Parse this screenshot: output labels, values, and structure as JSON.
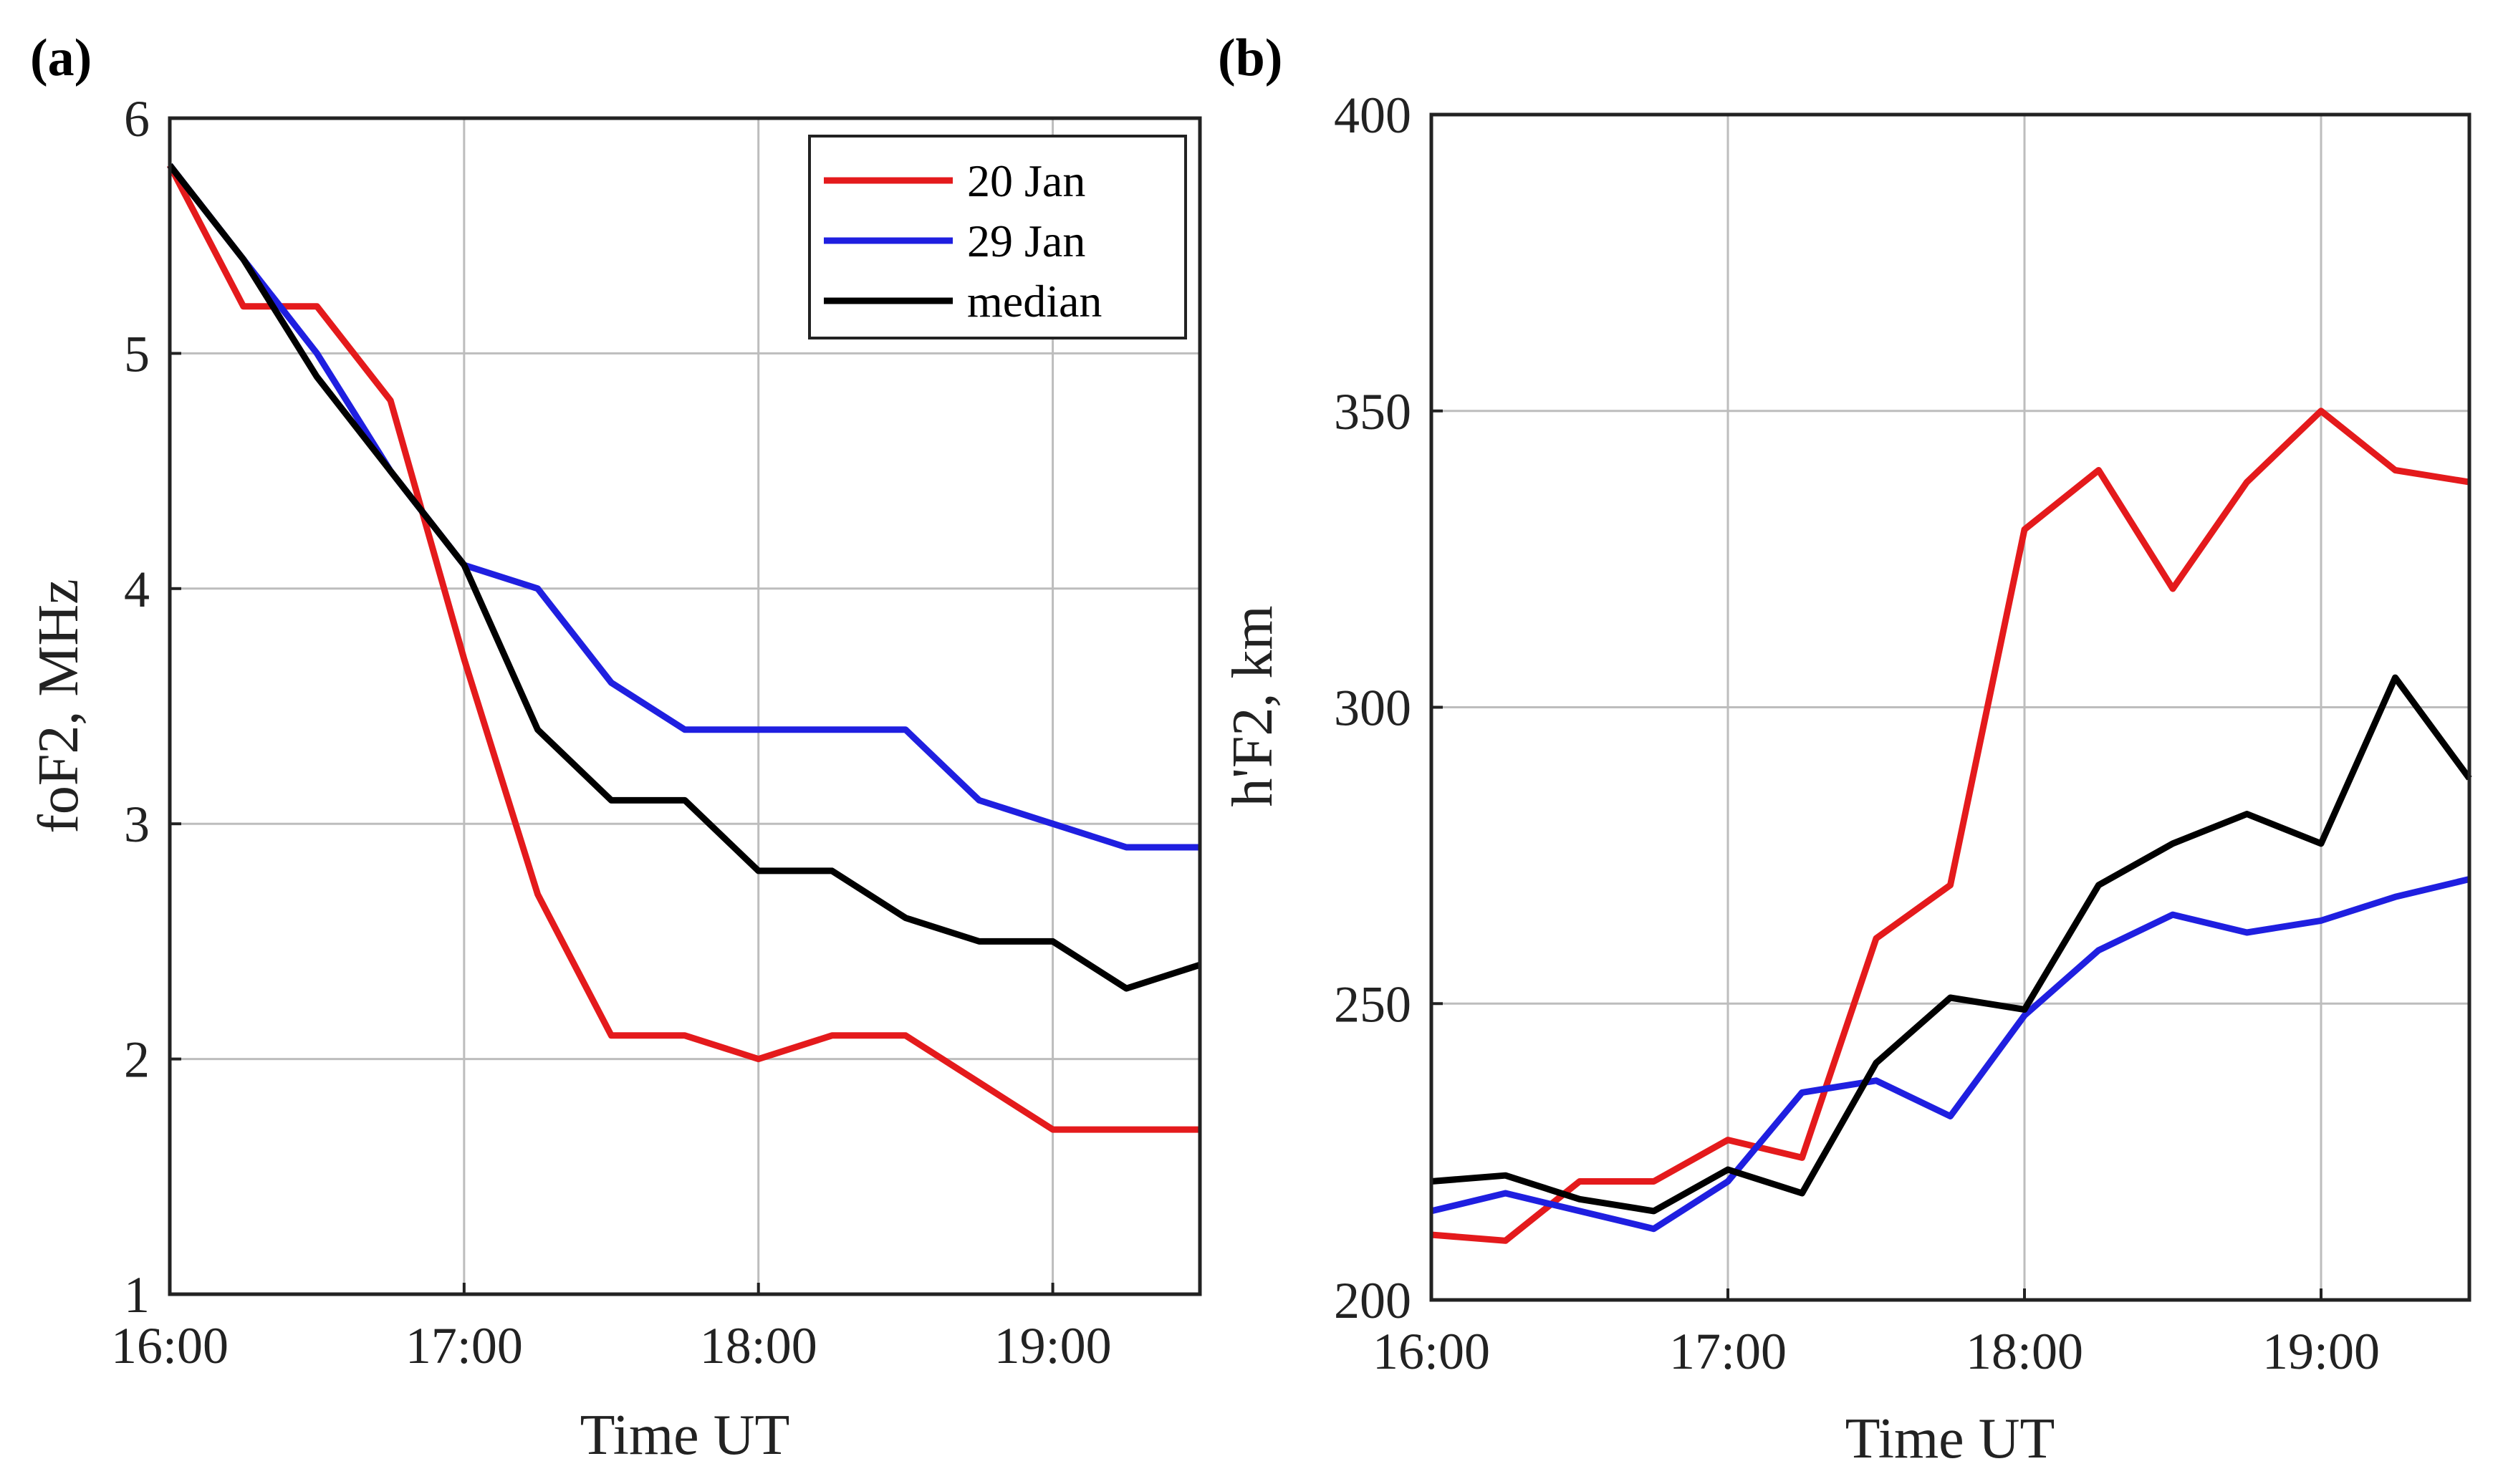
{
  "chart_data": [
    {
      "panel_label": "(a)",
      "type": "line",
      "xlabel": "Time UT",
      "ylabel": "foF2, MHz",
      "xlim": [
        16.0,
        19.5
      ],
      "ylim": [
        1,
        6
      ],
      "xticks": [
        16,
        17,
        18,
        19
      ],
      "xtick_labels": [
        "16:00",
        "17:00",
        "18:00",
        "19:00"
      ],
      "yticks": [
        1,
        2,
        3,
        4,
        5,
        6
      ],
      "ytick_labels": [
        "1",
        "2",
        "3",
        "4",
        "5",
        "6"
      ],
      "grid": true,
      "legend": "top-right",
      "x": [
        16.0,
        16.25,
        16.5,
        16.75,
        17.0,
        17.25,
        17.5,
        17.75,
        18.0,
        18.25,
        18.5,
        18.75,
        19.0,
        19.25,
        19.5
      ],
      "series": [
        {
          "name": "20 Jan",
          "color": "#e41a1c",
          "values": [
            5.8,
            5.2,
            5.2,
            4.8,
            3.7,
            2.7,
            2.1,
            2.1,
            2.0,
            2.1,
            2.1,
            1.9,
            1.7,
            1.7,
            1.7
          ]
        },
        {
          "name": "29 Jan",
          "color": "#1f1fe0",
          "values": [
            5.8,
            5.4,
            5.0,
            4.5,
            4.1,
            4.0,
            3.6,
            3.4,
            3.4,
            3.4,
            3.4,
            3.1,
            3.0,
            2.9,
            2.9
          ]
        },
        {
          "name": "median",
          "color": "#000000",
          "values": [
            5.8,
            5.4,
            4.9,
            4.5,
            4.1,
            3.4,
            3.1,
            3.1,
            2.8,
            2.8,
            2.6,
            2.5,
            2.5,
            2.3,
            2.4
          ]
        }
      ]
    },
    {
      "panel_label": "(b)",
      "type": "line",
      "xlabel": "Time UT",
      "ylabel": "h'F2, km",
      "xlim": [
        16.0,
        19.5
      ],
      "ylim": [
        200,
        400
      ],
      "xticks": [
        16,
        17,
        18,
        19
      ],
      "xtick_labels": [
        "16:00",
        "17:00",
        "18:00",
        "19:00"
      ],
      "yticks": [
        200,
        250,
        300,
        350,
        400
      ],
      "ytick_labels": [
        "200",
        "250",
        "300",
        "350",
        "400"
      ],
      "grid": true,
      "legend": "none",
      "x": [
        16.0,
        16.25,
        16.5,
        16.75,
        17.0,
        17.25,
        17.5,
        17.75,
        18.0,
        18.25,
        18.5,
        18.75,
        19.0,
        19.25,
        19.5
      ],
      "series": [
        {
          "name": "20 Jan",
          "color": "#e41a1c",
          "values": [
            211,
            210,
            220,
            220,
            227,
            224,
            261,
            270,
            330,
            340,
            320,
            338,
            350,
            340,
            338
          ]
        },
        {
          "name": "29 Jan",
          "color": "#1f1fe0",
          "values": [
            215,
            218,
            215,
            212,
            220,
            235,
            237,
            231,
            248,
            259,
            265,
            262,
            264,
            268,
            271
          ]
        },
        {
          "name": "median",
          "color": "#000000",
          "values": [
            220,
            221,
            217,
            215,
            222,
            218,
            240,
            251,
            249,
            270,
            277,
            282,
            277,
            305,
            288
          ]
        }
      ]
    }
  ]
}
